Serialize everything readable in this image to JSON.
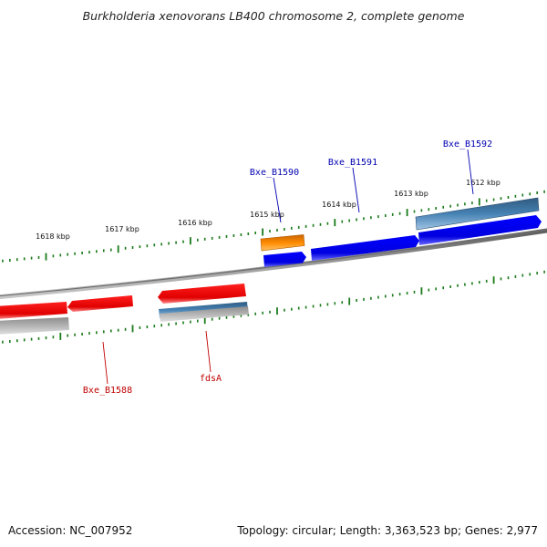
{
  "title": "Burkholderia xenovorans LB400 chromosome 2, complete genome",
  "footer": {
    "accession": "Accession: NC_007952",
    "summary": "Topology: circular; Length: 3,363,523 bp; Genes: 2,977"
  },
  "colors": {
    "backbone": "#808080",
    "tick": "#1a7a1a",
    "forward_cds": "#0000e0",
    "reverse_cds": "#e00000",
    "forward_feature_orange": "#ff8c00",
    "feature_steel_blue": "#4682b4",
    "feature_gray": "#a8a8a8",
    "forward_label": "#0000b0",
    "reverse_label": "#c00000"
  },
  "position_labels": [
    "1618 kbp",
    "1617 kbp",
    "1616 kbp",
    "1615 kbp",
    "1614 kbp",
    "1613 kbp",
    "1612 kbp"
  ],
  "gene_labels": {
    "forward": [
      "Bxe_B1590",
      "Bxe_B1591",
      "Bxe_B1592"
    ],
    "reverse": [
      "Bxe_B1588",
      "fdsA"
    ]
  }
}
